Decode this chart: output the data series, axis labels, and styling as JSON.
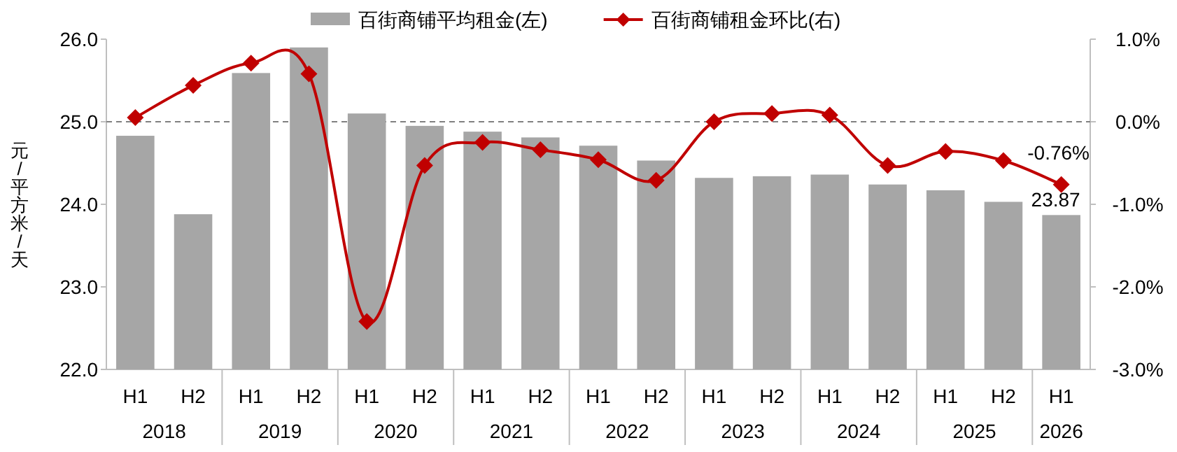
{
  "chart_data": {
    "type": "bar",
    "ylabel": "元/平方米/天",
    "categories": [
      "H1",
      "H2",
      "H1",
      "H2",
      "H1",
      "H2",
      "H1",
      "H2",
      "H1",
      "H2",
      "H1",
      "H2",
      "H1",
      "H2",
      "H1",
      "H2",
      "H1"
    ],
    "annotations": [
      "2018",
      "2019",
      "2020",
      "2021",
      "2022",
      "2023",
      "2024",
      "2025",
      "2026"
    ],
    "series": [
      {
        "name": "百街商铺平均租金(左)",
        "color": "#a6a6a6",
        "values": [
          24.83,
          23.88,
          25.59,
          25.9,
          25.1,
          24.95,
          24.88,
          24.81,
          24.71,
          24.53,
          24.32,
          24.34,
          24.36,
          24.24,
          24.17,
          24.03,
          23.87
        ],
        "value_labels": [
          null,
          null,
          null,
          null,
          null,
          null,
          null,
          null,
          null,
          null,
          null,
          null,
          null,
          null,
          null,
          null,
          "23.87"
        ]
      },
      {
        "name": "百街商铺租金环比(右)",
        "type": "line",
        "axis": "y2",
        "color": "#c00000",
        "marker": "diamond",
        "values": [
          0.05,
          0.44,
          0.71,
          0.58,
          -2.42,
          -0.53,
          -0.25,
          -0.34,
          -0.46,
          -0.71,
          0.0,
          0.1,
          0.08,
          -0.53,
          -0.36,
          -0.47,
          -0.76
        ],
        "value_labels": [
          null,
          null,
          null,
          null,
          null,
          null,
          null,
          null,
          null,
          null,
          null,
          null,
          null,
          null,
          null,
          null,
          "-0.76%"
        ]
      }
    ],
    "ylim": [
      22,
      26
    ],
    "yticks": [
      {
        "value": 22,
        "label": "22.0"
      },
      {
        "value": 23,
        "label": "23.0"
      },
      {
        "value": 24,
        "label": "24.0"
      },
      {
        "value": 25,
        "label": "25.0"
      },
      {
        "value": 26,
        "label": "26.0"
      }
    ],
    "y2lim": [
      -3,
      1
    ],
    "y2ticks": [
      {
        "value": -3,
        "label": "-3.0%"
      },
      {
        "value": -2,
        "label": "-2.0%"
      },
      {
        "value": -1,
        "label": "-1.0%"
      },
      {
        "value": 0,
        "label": "0.0%"
      },
      {
        "value": 1,
        "label": "1.0%"
      }
    ],
    "ref_lines": [
      {
        "axis": "y2",
        "value": 0,
        "color": "#808080",
        "line_style": "dashed"
      }
    ],
    "legend": "top",
    "grid": false
  }
}
